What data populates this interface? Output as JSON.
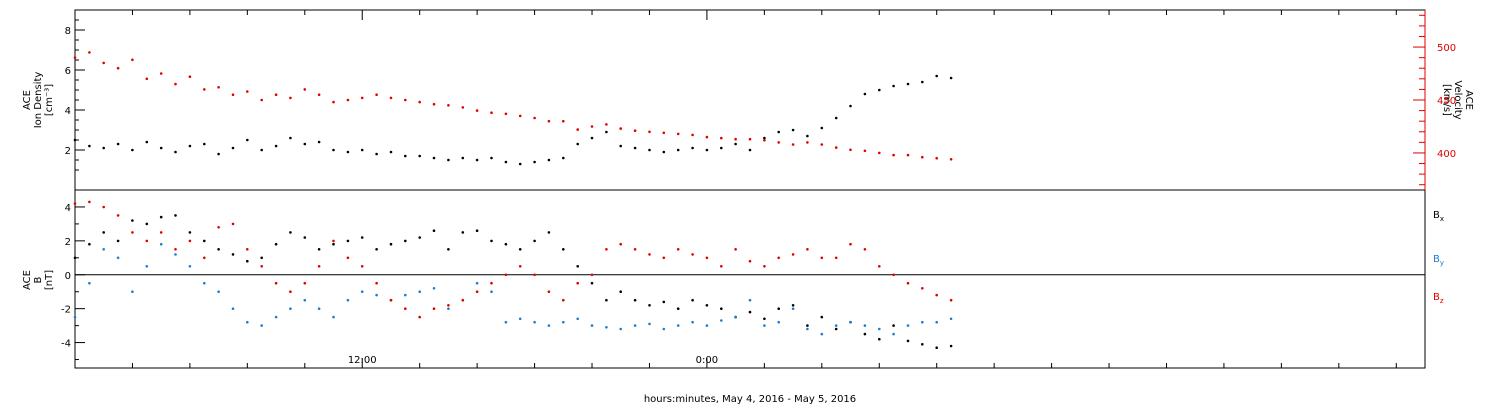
{
  "chart_data": [
    {
      "type": "scatter",
      "panel": "top",
      "ylabel": [
        "ACE",
        "Ion Density",
        "[cm⁻³]"
      ],
      "y2label": [
        "ACE",
        "Velocity",
        "[km/s]"
      ],
      "ylim": [
        0,
        9
      ],
      "y2lim": [
        365,
        535
      ],
      "yticks": [
        2,
        4,
        6,
        8
      ],
      "y2ticks": [
        400,
        450,
        500
      ],
      "series": [
        {
          "name": "Ion Density",
          "axis": "left",
          "color": "#000000",
          "x": [
            0.0,
            0.5,
            1.0,
            1.5,
            2.0,
            2.5,
            3.0,
            3.5,
            4.0,
            4.5,
            5.0,
            5.5,
            6.0,
            6.5,
            7.0,
            7.5,
            8.0,
            8.5,
            9.0,
            9.5,
            10.0,
            10.5,
            11.0,
            11.5,
            12.0,
            12.5,
            13.0,
            13.5,
            14.0,
            14.5,
            15.0,
            15.5,
            16.0,
            16.5,
            17.0,
            17.5,
            18.0,
            18.5,
            19.0,
            19.5,
            20.0,
            20.5,
            21.0,
            21.5,
            22.0,
            22.5,
            23.0,
            23.5,
            24.0,
            24.5,
            25.0,
            25.5,
            26.0,
            26.5,
            27.0,
            27.5,
            28.0,
            28.5,
            29.0,
            29.5,
            30.0,
            30.5
          ],
          "y": [
            2.5,
            2.2,
            2.1,
            2.3,
            2.0,
            2.4,
            2.1,
            1.9,
            2.2,
            2.3,
            1.8,
            2.1,
            2.5,
            2.0,
            2.2,
            2.6,
            2.3,
            2.4,
            2.0,
            1.9,
            2.0,
            1.8,
            1.9,
            1.7,
            1.7,
            1.6,
            1.5,
            1.6,
            1.5,
            1.6,
            1.4,
            1.3,
            1.4,
            1.5,
            1.6,
            2.3,
            2.6,
            2.9,
            2.2,
            2.1,
            2.0,
            1.9,
            2.0,
            2.1,
            2.0,
            2.1,
            2.3,
            2.0,
            2.6,
            2.9,
            3.0,
            2.7,
            3.1,
            3.6,
            4.2,
            4.8,
            5.0,
            5.2,
            5.3,
            5.4,
            5.7,
            5.6
          ]
        },
        {
          "name": "Velocity",
          "axis": "right",
          "color": "#e00000",
          "x": [
            0.0,
            0.5,
            1.0,
            1.5,
            2.0,
            2.5,
            3.0,
            3.5,
            4.0,
            4.5,
            5.0,
            5.5,
            6.0,
            6.5,
            7.0,
            7.5,
            8.0,
            8.5,
            9.0,
            9.5,
            10.0,
            10.5,
            11.0,
            11.5,
            12.0,
            12.5,
            13.0,
            13.5,
            14.0,
            14.5,
            15.0,
            15.5,
            16.0,
            16.5,
            17.0,
            17.5,
            18.0,
            18.5,
            19.0,
            19.5,
            20.0,
            20.5,
            21.0,
            21.5,
            22.0,
            22.5,
            23.0,
            23.5,
            24.0,
            24.5,
            25.0,
            25.5,
            26.0,
            26.5,
            27.0,
            27.5,
            28.0,
            28.5,
            29.0,
            29.5,
            30.0,
            30.5
          ],
          "y": [
            490,
            495,
            485,
            480,
            488,
            470,
            475,
            465,
            472,
            460,
            462,
            455,
            458,
            450,
            455,
            452,
            460,
            455,
            448,
            450,
            452,
            455,
            452,
            450,
            448,
            446,
            445,
            443,
            440,
            438,
            437,
            435,
            433,
            430,
            430,
            422,
            425,
            427,
            423,
            421,
            420,
            419,
            418,
            417,
            415,
            414,
            413,
            413,
            412,
            410,
            408,
            410,
            408,
            405,
            403,
            402,
            400,
            398,
            398,
            396,
            395,
            394
          ]
        }
      ]
    },
    {
      "type": "scatter",
      "panel": "bottom",
      "ylabel": [
        "ACE",
        "B",
        "[nT]"
      ],
      "ylim": [
        -5.5,
        5.0
      ],
      "yticks": [
        -4,
        -2,
        0,
        2,
        4
      ],
      "zero_line": true,
      "legend_placement": "right",
      "xlabel": "hours:minutes, May  4, 2016 - May  5, 2016",
      "xlim": [
        0,
        47
      ],
      "xticks": [
        {
          "x": 10,
          "label": "12:00"
        },
        {
          "x": 22,
          "label": "0:00"
        }
      ],
      "series": [
        {
          "name": "Bx",
          "color": "#000000",
          "x": [
            0.0,
            0.5,
            1.0,
            1.5,
            2.0,
            2.5,
            3.0,
            3.5,
            4.0,
            4.5,
            5.0,
            5.5,
            6.0,
            6.5,
            7.0,
            7.5,
            8.0,
            8.5,
            9.0,
            9.5,
            10.0,
            10.5,
            11.0,
            11.5,
            12.0,
            12.5,
            13.0,
            13.5,
            14.0,
            14.5,
            15.0,
            15.5,
            16.0,
            16.5,
            17.0,
            17.5,
            18.0,
            18.5,
            19.0,
            19.5,
            20.0,
            20.5,
            21.0,
            21.5,
            22.0,
            22.5,
            23.0,
            23.5,
            24.0,
            24.5,
            25.0,
            25.5,
            26.0,
            26.5,
            27.0,
            27.5,
            28.0,
            28.5,
            29.0,
            29.5,
            30.0,
            30.5
          ],
          "y": [
            1.0,
            1.8,
            2.5,
            2.0,
            3.2,
            3.0,
            3.4,
            3.5,
            2.5,
            2.0,
            1.5,
            1.2,
            0.8,
            1.0,
            1.8,
            2.5,
            2.2,
            1.5,
            1.8,
            2.0,
            2.2,
            1.5,
            1.8,
            2.0,
            2.2,
            2.6,
            1.5,
            2.5,
            2.6,
            2.0,
            1.8,
            1.5,
            2.0,
            2.5,
            1.5,
            0.5,
            -0.5,
            -1.5,
            -1.0,
            -1.5,
            -1.8,
            -1.6,
            -2.0,
            -1.5,
            -1.8,
            -2.0,
            -2.5,
            -2.2,
            -2.6,
            -2.0,
            -1.8,
            -3.0,
            -2.5,
            -3.2,
            -2.8,
            -3.5,
            -3.8,
            -3.0,
            -3.9,
            -4.1,
            -4.3,
            -4.2
          ]
        },
        {
          "name": "By",
          "color": "#1a7fd4",
          "x": [
            0.0,
            0.5,
            1.0,
            1.5,
            2.0,
            2.5,
            3.0,
            3.5,
            4.0,
            4.5,
            5.0,
            5.5,
            6.0,
            6.5,
            7.0,
            7.5,
            8.0,
            8.5,
            9.0,
            9.5,
            10.0,
            10.5,
            11.0,
            11.5,
            12.0,
            12.5,
            13.0,
            13.5,
            14.0,
            14.5,
            15.0,
            15.5,
            16.0,
            16.5,
            17.0,
            17.5,
            18.0,
            18.5,
            19.0,
            19.5,
            20.0,
            20.5,
            21.0,
            21.5,
            22.0,
            22.5,
            23.0,
            23.5,
            24.0,
            24.5,
            25.0,
            25.5,
            26.0,
            26.5,
            27.0,
            27.5,
            28.0,
            28.5,
            29.0,
            29.5,
            30.0,
            30.5
          ],
          "y": [
            -2.5,
            -0.5,
            1.5,
            1.0,
            -1.0,
            0.5,
            1.8,
            1.2,
            0.5,
            -0.5,
            -1.0,
            -2.0,
            -2.8,
            -3.0,
            -2.5,
            -2.0,
            -1.5,
            -2.0,
            -2.5,
            -1.5,
            -1.0,
            -1.2,
            -1.5,
            -1.2,
            -1.0,
            -0.8,
            -2.0,
            -1.5,
            -0.5,
            -1.0,
            -2.8,
            -2.6,
            -2.8,
            -3.0,
            -2.8,
            -2.6,
            -3.0,
            -3.1,
            -3.2,
            -3.0,
            -2.9,
            -3.2,
            -3.0,
            -2.8,
            -3.0,
            -2.7,
            -2.5,
            -1.5,
            -3.0,
            -2.8,
            -2.0,
            -3.2,
            -3.5,
            -3.0,
            -2.8,
            -3.0,
            -3.2,
            -3.5,
            -3.0,
            -2.8,
            -2.8,
            -2.6
          ]
        },
        {
          "name": "Bz",
          "color": "#e00000",
          "x": [
            0.0,
            0.5,
            1.0,
            1.5,
            2.0,
            2.5,
            3.0,
            3.5,
            4.0,
            4.5,
            5.0,
            5.5,
            6.0,
            6.5,
            7.0,
            7.5,
            8.0,
            8.5,
            9.0,
            9.5,
            10.0,
            10.5,
            11.0,
            11.5,
            12.0,
            12.5,
            13.0,
            13.5,
            14.0,
            14.5,
            15.0,
            15.5,
            16.0,
            16.5,
            17.0,
            17.5,
            18.0,
            18.5,
            19.0,
            19.5,
            20.0,
            20.5,
            21.0,
            21.5,
            22.0,
            22.5,
            23.0,
            23.5,
            24.0,
            24.5,
            25.0,
            25.5,
            26.0,
            26.5,
            27.0,
            27.5,
            28.0,
            28.5,
            29.0,
            29.5,
            30.0,
            30.5
          ],
          "y": [
            4.2,
            4.3,
            4.0,
            3.5,
            2.5,
            2.0,
            2.5,
            1.5,
            2.0,
            1.0,
            2.8,
            3.0,
            1.5,
            0.5,
            -0.5,
            -1.0,
            -0.5,
            0.5,
            2.0,
            1.0,
            0.5,
            -0.5,
            -1.5,
            -2.0,
            -2.5,
            -2.0,
            -1.8,
            -1.5,
            -1.0,
            -0.5,
            0.0,
            0.5,
            0.0,
            -1.0,
            -1.5,
            -0.5,
            0.0,
            1.5,
            1.8,
            1.5,
            1.2,
            1.0,
            1.5,
            1.2,
            1.0,
            0.5,
            1.5,
            0.8,
            0.5,
            1.0,
            1.2,
            1.5,
            1.0,
            1.0,
            1.8,
            1.5,
            0.5,
            0.0,
            -0.5,
            -0.8,
            -1.2,
            -1.5
          ]
        }
      ]
    }
  ],
  "colors": {
    "frame": "#000000",
    "black_series": "#000000",
    "red_series": "#e00000",
    "blue_series": "#1a7fd4"
  }
}
